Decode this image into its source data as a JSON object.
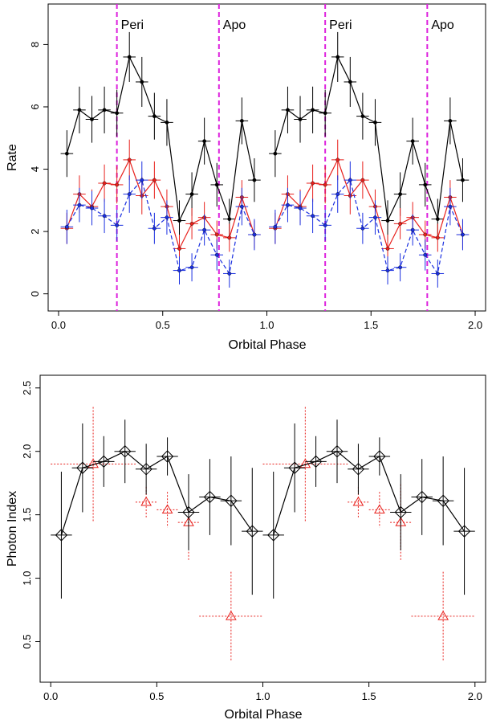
{
  "chart_data": [
    {
      "type": "scatter",
      "xlabel": "Orbital Phase",
      "ylabel": "Rate",
      "xlim": [
        -0.05,
        2.05
      ],
      "ylim": [
        -0.55,
        9.3
      ],
      "xticks": [
        "0.0",
        "0.5",
        "1.0",
        "1.5",
        "2.0"
      ],
      "yticks": [
        "0",
        "2",
        "4",
        "6",
        "8"
      ],
      "grid": false,
      "vlines": [
        {
          "x": 0.28,
          "label": "Peri",
          "color": "#dd22dd"
        },
        {
          "x": 0.77,
          "label": "Apo",
          "color": "#dd22dd"
        },
        {
          "x": 1.28,
          "label": "Peri",
          "color": "#dd22dd"
        },
        {
          "x": 1.77,
          "label": "Apo",
          "color": "#dd22dd"
        }
      ],
      "series": [
        {
          "color": "#000000",
          "x": [
            0.04,
            0.1,
            0.16,
            0.22,
            0.28,
            0.34,
            0.4,
            0.46,
            0.52,
            0.58,
            0.64,
            0.7,
            0.76,
            0.82,
            0.88,
            0.94,
            1.04,
            1.1,
            1.16,
            1.22,
            1.28,
            1.34,
            1.4,
            1.46,
            1.52,
            1.58,
            1.64,
            1.7,
            1.76,
            1.82,
            1.88,
            1.94
          ],
          "y": [
            4.5,
            5.9,
            5.6,
            5.9,
            5.8,
            7.6,
            6.8,
            5.7,
            5.5,
            2.35,
            3.2,
            4.9,
            3.5,
            2.4,
            5.55,
            3.65,
            4.5,
            5.9,
            5.6,
            5.9,
            5.8,
            7.6,
            6.8,
            5.7,
            5.5,
            2.35,
            3.2,
            4.9,
            3.5,
            2.4,
            5.55,
            3.65
          ],
          "yerr": [
            0.75,
            0.75,
            0.75,
            0.75,
            0.75,
            0.8,
            0.8,
            0.75,
            0.75,
            0.65,
            0.7,
            0.75,
            0.7,
            0.65,
            0.75,
            0.7,
            0.75,
            0.75,
            0.75,
            0.75,
            0.75,
            0.8,
            0.8,
            0.75,
            0.75,
            0.65,
            0.7,
            0.75,
            0.7,
            0.65,
            0.75,
            0.7
          ]
        },
        {
          "color": "#e8201c",
          "x": [
            0.04,
            0.1,
            0.16,
            0.22,
            0.28,
            0.34,
            0.4,
            0.46,
            0.52,
            0.58,
            0.64,
            0.7,
            0.76,
            0.82,
            0.88,
            0.94,
            1.04,
            1.1,
            1.16,
            1.22,
            1.28,
            1.34,
            1.4,
            1.46,
            1.52,
            1.58,
            1.64,
            1.7,
            1.76,
            1.82,
            1.88,
            1.94
          ],
          "y": [
            2.1,
            3.2,
            2.8,
            3.55,
            3.5,
            4.3,
            3.15,
            3.65,
            2.8,
            1.45,
            2.25,
            2.45,
            1.9,
            1.8,
            3.1,
            1.9,
            2.1,
            3.2,
            2.8,
            3.55,
            3.5,
            4.3,
            3.15,
            3.65,
            2.8,
            1.45,
            2.25,
            2.45,
            1.9,
            1.8,
            3.1,
            1.9
          ],
          "yerr": [
            0.5,
            0.6,
            0.55,
            0.6,
            0.6,
            0.65,
            0.6,
            0.6,
            0.55,
            0.45,
            0.5,
            0.5,
            0.45,
            0.45,
            0.55,
            0.45,
            0.5,
            0.6,
            0.55,
            0.6,
            0.6,
            0.65,
            0.6,
            0.6,
            0.55,
            0.45,
            0.5,
            0.5,
            0.45,
            0.45,
            0.55,
            0.45
          ]
        },
        {
          "color": "#1a2fe0",
          "x": [
            0.04,
            0.1,
            0.16,
            0.22,
            0.28,
            0.34,
            0.4,
            0.46,
            0.52,
            0.58,
            0.64,
            0.7,
            0.76,
            0.82,
            0.88,
            0.94,
            1.04,
            1.1,
            1.16,
            1.22,
            1.28,
            1.34,
            1.4,
            1.46,
            1.52,
            1.58,
            1.64,
            1.7,
            1.76,
            1.82,
            1.88,
            1.94
          ],
          "y": [
            2.15,
            2.85,
            2.75,
            2.5,
            2.2,
            3.2,
            3.65,
            2.1,
            2.45,
            0.75,
            0.85,
            2.05,
            1.25,
            0.65,
            2.8,
            1.9,
            2.15,
            2.85,
            2.75,
            2.5,
            2.2,
            3.2,
            3.65,
            2.1,
            2.45,
            0.75,
            0.85,
            2.05,
            1.25,
            0.65,
            2.8,
            1.9
          ],
          "yerr": [
            0.55,
            0.55,
            0.55,
            0.55,
            0.5,
            0.6,
            0.6,
            0.5,
            0.55,
            0.45,
            0.45,
            0.5,
            0.5,
            0.45,
            0.6,
            0.5,
            0.55,
            0.55,
            0.55,
            0.55,
            0.5,
            0.6,
            0.6,
            0.5,
            0.55,
            0.45,
            0.45,
            0.5,
            0.5,
            0.45,
            0.6,
            0.5
          ]
        }
      ],
      "xerr": 0.03,
      "colors": {
        "vline": "#dd22dd"
      }
    },
    {
      "type": "scatter",
      "xlabel": "Orbital Phase",
      "ylabel": "Photon Index",
      "xlim": [
        -0.05,
        2.05
      ],
      "ylim": [
        0.18,
        2.6
      ],
      "xticks": [
        "0.0",
        "0.5",
        "1.0",
        "1.5",
        "2.0"
      ],
      "yticks": [
        "0.5",
        "1.0",
        "1.5",
        "2.0",
        "2.5"
      ],
      "grid": false,
      "series": [
        {
          "color": "#000000",
          "marker": "diamond",
          "x": [
            0.05,
            0.15,
            0.25,
            0.35,
            0.45,
            0.55,
            0.65,
            0.75,
            0.85,
            0.95,
            1.05,
            1.15,
            1.25,
            1.35,
            1.45,
            1.55,
            1.65,
            1.75,
            1.85,
            1.95
          ],
          "y": [
            1.34,
            1.87,
            1.92,
            2.0,
            1.86,
            1.96,
            1.52,
            1.64,
            1.61,
            1.37,
            1.34,
            1.87,
            1.92,
            2.0,
            1.86,
            1.96,
            1.52,
            1.64,
            1.61,
            1.37
          ],
          "yerr": [
            0.5,
            0.35,
            0.2,
            0.25,
            0.2,
            0.15,
            0.3,
            0.3,
            0.35,
            0.5,
            0.5,
            0.35,
            0.2,
            0.25,
            0.2,
            0.15,
            0.3,
            0.3,
            0.35,
            0.5
          ],
          "xerr": 0.05
        },
        {
          "color": "#e8201c",
          "marker": "triangle",
          "x": [
            0.2,
            0.45,
            0.55,
            0.65,
            0.85,
            1.2,
            1.45,
            1.55,
            1.65,
            1.85
          ],
          "y": [
            1.9,
            1.6,
            1.54,
            1.44,
            0.7,
            1.9,
            1.6,
            1.54,
            1.44,
            0.7
          ],
          "yerr": [
            0.45,
            0.12,
            0.14,
            0.3,
            0.35,
            0.45,
            0.12,
            0.14,
            0.3,
            0.35
          ],
          "xerr": [
            0.2,
            0.05,
            0.05,
            0.05,
            0.15,
            0.2,
            0.05,
            0.05,
            0.05,
            0.15
          ]
        }
      ]
    }
  ]
}
